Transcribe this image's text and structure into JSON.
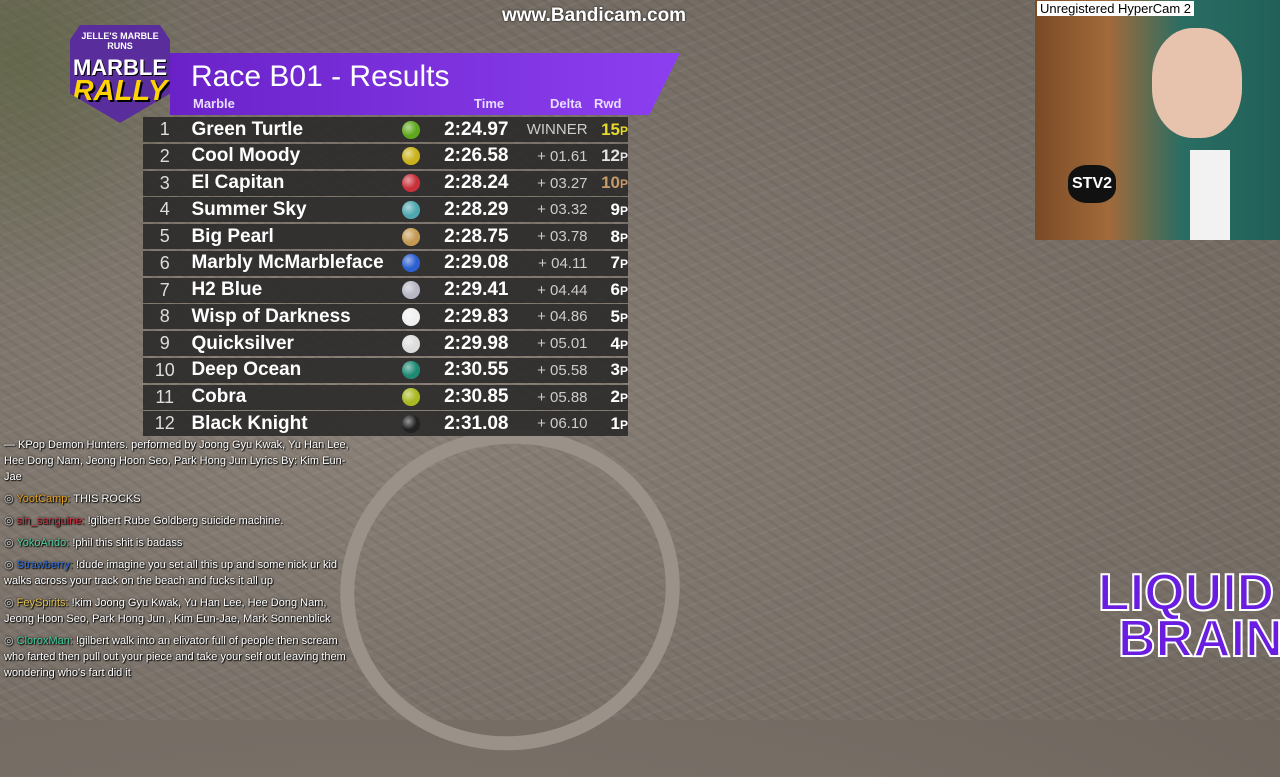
{
  "watermark": "www.Bandicam.com",
  "webcam": {
    "title": "Unregistered HyperCam 2",
    "shirt_logo": "STV2"
  },
  "logo": {
    "top": "JELLE'S MARBLE RUNS",
    "line1": "MARBLE",
    "line2": "RALLY"
  },
  "results": {
    "title": "Race B01 - Results",
    "headers": {
      "marble": "Marble",
      "time": "Time",
      "delta": "Delta",
      "reward": "Rwd"
    },
    "reward_colors": {
      "gold": "#e6d92a",
      "silver": "#e4e4e4",
      "bronze": "#c79a6a",
      "default": "#ffffff"
    },
    "rows": [
      {
        "pos": "1",
        "name": "Green Turtle",
        "time": "2:24.97",
        "delta": "WINNER",
        "reward": "15",
        "unit": "P",
        "color": "#5fa81e"
      },
      {
        "pos": "2",
        "name": "Cool Moody",
        "time": "2:26.58",
        "delta": "+ 01.61",
        "reward": "12",
        "unit": "P",
        "color": "#c9b21c"
      },
      {
        "pos": "3",
        "name": "El Capitan",
        "time": "2:28.24",
        "delta": "+ 03.27",
        "reward": "10",
        "unit": "P",
        "color": "#c8303a"
      },
      {
        "pos": "4",
        "name": "Summer Sky",
        "time": "2:28.29",
        "delta": "+ 03.32",
        "reward": "9",
        "unit": "P",
        "color": "#4fa8b0"
      },
      {
        "pos": "5",
        "name": "Big Pearl",
        "time": "2:28.75",
        "delta": "+ 03.78",
        "reward": "8",
        "unit": "P",
        "color": "#c49a52"
      },
      {
        "pos": "6",
        "name": "Marbly McMarbleface",
        "time": "2:29.08",
        "delta": "+ 04.11",
        "reward": "7",
        "unit": "P",
        "color": "#2c5fd0"
      },
      {
        "pos": "7",
        "name": "H2 Blue",
        "time": "2:29.41",
        "delta": "+ 04.44",
        "reward": "6",
        "unit": "P",
        "color": "#b8b8c4"
      },
      {
        "pos": "8",
        "name": "Wisp of Darkness",
        "time": "2:29.83",
        "delta": "+ 04.86",
        "reward": "5",
        "unit": "P",
        "color": "#f0f0f0"
      },
      {
        "pos": "9",
        "name": "Quicksilver",
        "time": "2:29.98",
        "delta": "+ 05.01",
        "reward": "4",
        "unit": "P",
        "color": "#dcdcdc"
      },
      {
        "pos": "10",
        "name": "Deep Ocean",
        "time": "2:30.55",
        "delta": "+ 05.58",
        "reward": "3",
        "unit": "P",
        "color": "#1f8a74"
      },
      {
        "pos": "11",
        "name": "Cobra",
        "time": "2:30.85",
        "delta": "+ 05.88",
        "reward": "2",
        "unit": "P",
        "color": "#a8b820"
      },
      {
        "pos": "12",
        "name": "Black Knight",
        "time": "2:31.08",
        "delta": "+ 06.10",
        "reward": "1",
        "unit": "P",
        "color": "#222222"
      }
    ]
  },
  "chat": {
    "now_playing": "— KPop Demon Hunters. performed by Joong Gyu Kwak, Yu Han Lee, Hee Dong Nam, Jeong Hoon Seo, Park Hong Jun Lyrics By: Kim Eun-Jae",
    "messages": [
      {
        "user": "YootCamp:",
        "text": " THIS ROCKS",
        "color": "#e0a020"
      },
      {
        "user": "sin_sanguine:",
        "text": " !gilbert Rube Goldberg suicide machine.",
        "color": "#d03040"
      },
      {
        "user": "YokoAndo:",
        "text": " !phil this shit is badass",
        "color": "#50d0a0"
      },
      {
        "user": "Strawberry:",
        "text": " !dude imagine you set all this up and some nick ur kid walks across your track on the beach and fucks it all up",
        "color": "#3070e0"
      },
      {
        "user": "FeySpirits:",
        "text": " !kim Joong Gyu Kwak, Yu Han Lee, Hee Dong Nam, Jeong Hoon Seo, Park Hong Jun , Kim Eun-Jae, Mark Sonnenblick",
        "color": "#e0c050"
      },
      {
        "user": "CloroxMan:",
        "text": " !gilbert walk into an elivator full of people then scream who farted then pull out your piece and take your self out leaving them wondering who's fart did it",
        "color": "#40d0a0"
      }
    ]
  },
  "overlay_logo": {
    "line1": "LIQUID",
    "line2": "BRAIN"
  }
}
